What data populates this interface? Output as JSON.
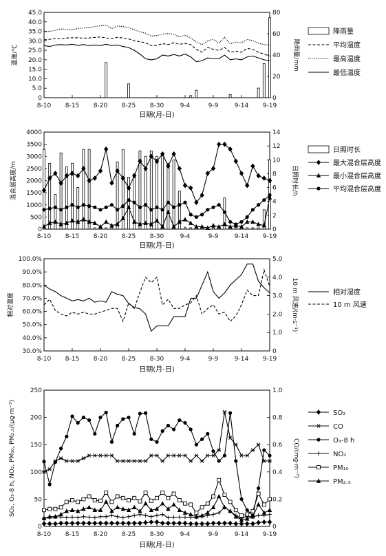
{
  "chart_data": [
    {
      "type": "bar+line",
      "title": "",
      "xlabel": "日期(月-日)",
      "ylabel": "温度/℃",
      "y2label": "降雨量/mm",
      "x_ticks": [
        "8-10",
        "8-15",
        "8-20",
        "8-25",
        "8-30",
        "9-4",
        "9-9",
        "9-14",
        "9-19"
      ],
      "x_range": [
        0,
        40
      ],
      "ylim": [
        0,
        45
      ],
      "y_ticks": [
        "0",
        "5.0",
        "10.0",
        "15.0",
        "20.0",
        "25.0",
        "30.0",
        "35.0",
        "40.0",
        "45.0"
      ],
      "y2lim": [
        0,
        80
      ],
      "y2_ticks": [
        "0",
        "20",
        "40",
        "60",
        "80"
      ],
      "legend": {
        "position": "right",
        "entries": [
          "降雨量",
          "平均温度",
          "最高温度",
          "最低温度"
        ]
      },
      "bars": {
        "name": "降雨量",
        "axis": "right",
        "x": [
          11,
          15,
          26,
          27,
          33,
          38,
          39,
          40,
          41,
          42
        ],
        "values": [
          33,
          13,
          2,
          7,
          3,
          9,
          32,
          75,
          19,
          1
        ]
      },
      "series": [
        {
          "name": "平均温度",
          "style": "dashed",
          "values": [
            30.5,
            30.8,
            31.2,
            31.0,
            31.5,
            31.6,
            31.6,
            31.4,
            31.5,
            31.8,
            32.0,
            31.5,
            31.2,
            31.8,
            31.5,
            31.0,
            30.0,
            29.5,
            29.0,
            27.5,
            27.6,
            28.5,
            28.0,
            29.0,
            28.2,
            28.6,
            28.0,
            25.5,
            24.0,
            26.5,
            25.5,
            25.0,
            26.5,
            24.0,
            24.5,
            24.0,
            26.0,
            25.5,
            24.0,
            23.0,
            22.0
          ]
        },
        {
          "name": "最高温度",
          "style": "dotted",
          "values": [
            34.8,
            35.0,
            35.5,
            36.3,
            36.0,
            35.8,
            36.5,
            36.8,
            37.0,
            37.5,
            38.0,
            38.2,
            36.5,
            37.8,
            37.5,
            37.0,
            35.8,
            34.8,
            34.0,
            32.5,
            32.8,
            33.5,
            33.8,
            33.5,
            32.0,
            33.0,
            31.5,
            29.5,
            28.0,
            30.0,
            30.8,
            28.8,
            31.8,
            28.5,
            29.3,
            29.0,
            30.8,
            30.0,
            28.8,
            28.0,
            27.8
          ]
        },
        {
          "name": "最低温度",
          "style": "solid",
          "values": [
            27.5,
            27.0,
            27.8,
            28.0,
            27.8,
            28.2,
            27.6,
            28.0,
            27.5,
            27.8,
            27.5,
            28.2,
            27.5,
            27.8,
            27.0,
            26.5,
            25.0,
            23.0,
            20.5,
            20.0,
            20.5,
            22.5,
            22.0,
            22.8,
            22.0,
            23.0,
            21.5,
            19.0,
            19.5,
            21.0,
            20.5,
            20.5,
            22.5,
            20.0,
            20.5,
            20.0,
            21.5,
            22.0,
            21.0,
            20.0,
            19.5
          ]
        }
      ]
    },
    {
      "type": "bar+line",
      "title": "",
      "xlabel": "日期(月-日)",
      "ylabel": "混合层高度/m",
      "y2label": "日照时长/h",
      "x_ticks": [
        "8-10",
        "8-15",
        "8-20",
        "8-25",
        "8-30",
        "9-4",
        "9-9",
        "9-14",
        "9-19"
      ],
      "x_range": [
        0,
        40
      ],
      "ylim": [
        0,
        4000
      ],
      "y_ticks": [
        "0",
        "500",
        "1000",
        "1500",
        "2000",
        "2500",
        "3000",
        "3500",
        "4000"
      ],
      "y2lim": [
        0,
        14
      ],
      "y2_ticks": [
        "0",
        "2",
        "4",
        "6",
        "8",
        "10",
        "12",
        "14"
      ],
      "legend": {
        "position": "right",
        "entries": [
          "日照时长",
          "最大混合层高度",
          "最小混合层高度",
          "平均混合层高度"
        ]
      },
      "bars": {
        "name": "日照时长",
        "axis": "right",
        "values": [
          11.5,
          9.5,
          5.0,
          11.0,
          9.0,
          9.5,
          6.0,
          11.5,
          11.5,
          0.2,
          0.2,
          0.2,
          0.2,
          9.7,
          11.5,
          7.5,
          8.0,
          11.3,
          10.5,
          11.3,
          10.5,
          11.0,
          9.5,
          10.0,
          5.5,
          0.2,
          0.2,
          0.2,
          0.2,
          0.2,
          0.2,
          0.2,
          4.5,
          0.2,
          0.2,
          0.2,
          0.2,
          0.2,
          0.2,
          2.8,
          10.0
        ]
      },
      "series": [
        {
          "name": "最大混合层高度",
          "marker": "diamond",
          "values": [
            1600,
            2100,
            2300,
            1900,
            2200,
            2300,
            2200,
            2500,
            2000,
            2100,
            2400,
            3300,
            1900,
            2400,
            2100,
            1700,
            2200,
            2800,
            2500,
            3000,
            2800,
            3100,
            2600,
            3100,
            2500,
            1800,
            1700,
            1100,
            1400,
            2300,
            2500,
            3500,
            3500,
            3300,
            2800,
            2300,
            1800,
            2600,
            2200,
            2100,
            2000
          ]
        },
        {
          "name": "最小混合层高度",
          "marker": "triangle",
          "values": [
            100,
            250,
            300,
            200,
            250,
            350,
            300,
            400,
            300,
            250,
            100,
            300,
            150,
            200,
            450,
            900,
            300,
            200,
            250,
            200,
            350,
            100,
            700,
            100,
            300,
            400,
            250,
            100,
            100,
            50,
            150,
            100,
            200,
            100,
            150,
            100,
            300,
            300,
            200,
            150,
            1300
          ]
        },
        {
          "name": "平均混合层高度",
          "marker": "circle",
          "values": [
            800,
            850,
            900,
            800,
            900,
            1000,
            900,
            1000,
            950,
            900,
            800,
            900,
            1000,
            800,
            950,
            1200,
            1100,
            900,
            1000,
            800,
            900,
            800,
            1100,
            900,
            1000,
            1100,
            600,
            500,
            600,
            800,
            900,
            1000,
            700,
            300,
            200,
            300,
            500,
            800,
            1000,
            1200,
            1400
          ]
        }
      ]
    },
    {
      "type": "line",
      "title": "",
      "xlabel": "日期(月-日)",
      "ylabel": "相对湿度",
      "y2label": "10 m 风速/(m·s⁻¹)",
      "x_ticks": [
        "8-10",
        "8-15",
        "8-20",
        "8-25",
        "8-30",
        "9-4",
        "9-9",
        "9-14",
        "9-19"
      ],
      "x_range": [
        0,
        40
      ],
      "ylim": [
        30,
        100
      ],
      "y_ticks": [
        "30.0%",
        "40.0%",
        "50.0%",
        "60.0%",
        "70.0%",
        "80.0%",
        "90.0%",
        "100.0%"
      ],
      "y2lim": [
        0,
        5.0
      ],
      "y2_ticks": [
        "0",
        "1.0",
        "2.0",
        "3.0",
        "4.0",
        "5.0"
      ],
      "legend": {
        "position": "right",
        "entries": [
          "相对湿度",
          "10 m 风速"
        ]
      },
      "series": [
        {
          "name": "相对湿度",
          "axis": "left",
          "style": "solid",
          "values": [
            80,
            77,
            75,
            72,
            70,
            68,
            69,
            68,
            70,
            67,
            68,
            67,
            75,
            73,
            72,
            66,
            63,
            62,
            58,
            45,
            49,
            49,
            49,
            56,
            56,
            56,
            70,
            70,
            80,
            90,
            75,
            70,
            74,
            80,
            84,
            88,
            96,
            96,
            83,
            78,
            74
          ]
        },
        {
          "name": "10 m 风速",
          "axis": "right",
          "style": "dashed",
          "values": [
            2.5,
            2.8,
            2.2,
            2.0,
            1.9,
            2.1,
            2.0,
            2.1,
            2.0,
            2.0,
            2.1,
            2.2,
            2.3,
            2.3,
            1.6,
            2.6,
            2.3,
            3.2,
            4.0,
            3.7,
            4.0,
            2.5,
            2.8,
            2.3,
            2.3,
            2.5,
            2.6,
            3.0,
            2.0,
            2.3,
            2.5,
            2.0,
            2.1,
            1.6,
            1.9,
            2.5,
            3.3,
            3.0,
            3.0,
            4.4,
            3.5
          ]
        }
      ]
    },
    {
      "type": "line",
      "title": "",
      "xlabel": "日期(月-日)",
      "ylabel": "SO₂, O₃-8 h, NO₂, PM₁₀, PM₂.₅/(μg·m⁻³)",
      "y2label": "CO/(mg·m⁻³)",
      "x_ticks": [
        "8-10",
        "8-15",
        "8-20",
        "8-25",
        "8-30",
        "9-4",
        "9-9",
        "9-14",
        "9-19"
      ],
      "x_range": [
        0,
        40
      ],
      "ylim": [
        0,
        250
      ],
      "y_ticks": [
        "0",
        "50",
        "100",
        "150",
        "200",
        "250"
      ],
      "y2lim": [
        0,
        1.0
      ],
      "y2_ticks": [
        "0",
        "0.2",
        "0.4",
        "0.6",
        "0.8",
        "1.0"
      ],
      "legend": {
        "position": "right",
        "entries": [
          "SO₂",
          "CO",
          "O₃-8 h",
          "NO₂",
          "PM₁₀",
          "PM₂.₅"
        ]
      },
      "series": [
        {
          "name": "SO₂",
          "axis": "left",
          "marker": "diamond",
          "values": [
            5,
            5,
            5,
            6,
            6,
            6,
            6,
            6,
            6,
            6,
            6,
            6,
            6,
            6,
            6,
            6,
            6,
            6,
            7,
            8,
            8,
            6,
            6,
            6,
            6,
            6,
            5,
            5,
            5,
            5,
            6,
            6,
            6,
            6,
            5,
            5,
            5,
            5,
            7,
            8,
            8
          ]
        },
        {
          "name": "CO",
          "axis": "right",
          "marker": "star",
          "values": [
            0.4,
            0.42,
            0.48,
            0.5,
            0.48,
            0.48,
            0.48,
            0.5,
            0.52,
            0.52,
            0.52,
            0.52,
            0.52,
            0.48,
            0.48,
            0.48,
            0.48,
            0.48,
            0.48,
            0.52,
            0.52,
            0.48,
            0.52,
            0.52,
            0.52,
            0.52,
            0.48,
            0.52,
            0.48,
            0.52,
            0.52,
            0.56,
            0.84,
            0.65,
            0.6,
            0.52,
            0.52,
            0.56,
            0.6,
            0.48,
            0.48
          ]
        },
        {
          "name": "O₃-8 h",
          "axis": "left",
          "marker": "circle",
          "values": [
            119,
            77,
            118,
            143,
            165,
            202,
            190,
            200,
            195,
            170,
            200,
            209,
            155,
            185,
            197,
            200,
            170,
            207,
            208,
            160,
            155,
            175,
            185,
            178,
            195,
            190,
            178,
            150,
            160,
            170,
            138,
            120,
            130,
            208,
            120,
            50,
            30,
            20,
            70,
            140,
            130
          ]
        },
        {
          "name": "NO₂",
          "axis": "left",
          "marker": "plus",
          "values": [
            15,
            16,
            18,
            17,
            16,
            17,
            16,
            18,
            17,
            16,
            18,
            18,
            20,
            18,
            16,
            18,
            20,
            22,
            20,
            18,
            20,
            22,
            16,
            17,
            17,
            17,
            16,
            17,
            18,
            20,
            22,
            25,
            35,
            28,
            20,
            15,
            18,
            18,
            20,
            20,
            22
          ]
        },
        {
          "name": "PM₁₀",
          "axis": "left",
          "marker": "square",
          "values": [
            30,
            32,
            32,
            35,
            45,
            48,
            45,
            50,
            55,
            48,
            47,
            62,
            45,
            55,
            52,
            48,
            52,
            46,
            62,
            47,
            52,
            62,
            52,
            60,
            48,
            42,
            40,
            25,
            35,
            42,
            55,
            85,
            58,
            45,
            30,
            20,
            22,
            28,
            60,
            40,
            50
          ]
        },
        {
          "name": "PM₂.₅",
          "axis": "left",
          "marker": "triangle",
          "values": [
            15,
            18,
            18,
            22,
            28,
            30,
            28,
            32,
            35,
            30,
            30,
            45,
            28,
            35,
            32,
            30,
            35,
            28,
            42,
            30,
            32,
            42,
            32,
            40,
            30,
            25,
            22,
            18,
            20,
            25,
            35,
            55,
            35,
            28,
            18,
            12,
            14,
            18,
            40,
            25,
            30
          ]
        }
      ]
    }
  ]
}
